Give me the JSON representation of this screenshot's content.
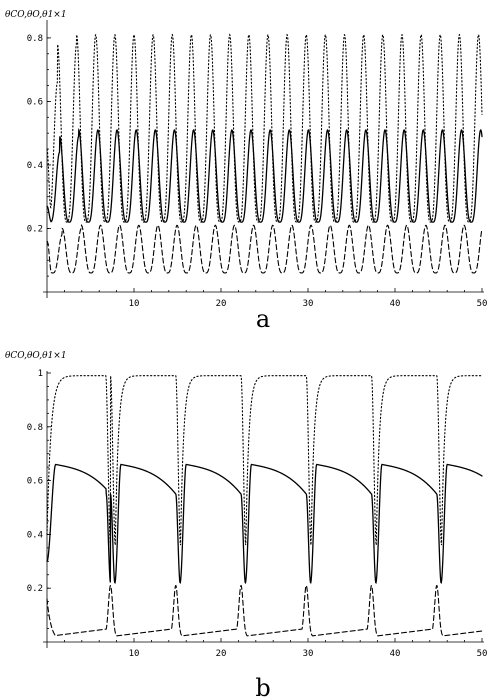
{
  "chart_data": [
    {
      "type": "line",
      "panel_label": "a",
      "ylabel": "θCO,θO,θ1×1",
      "xlim": [
        0,
        50
      ],
      "ylim": [
        0.0,
        0.85
      ],
      "xticks": [
        10,
        20,
        30,
        40,
        50
      ],
      "xtick_labels": [
        "10",
        "20",
        "30",
        "40",
        "50"
      ],
      "yticks": [
        0.2,
        0.4,
        0.6,
        0.8
      ],
      "ytick_labels": [
        "0.2",
        "0.4",
        "0.6",
        "0.8"
      ],
      "grid": false,
      "series": [
        {
          "style": "dotted",
          "kind": "periodic",
          "period": 2.2,
          "y0": 0.45,
          "early": [
            0.66,
            0.78
          ],
          "peak": 0.81,
          "trough": 0.22,
          "phase": 1.2
        },
        {
          "style": "solid",
          "kind": "periodic",
          "period": 2.2,
          "y0": 0.27,
          "early": [
            0.44,
            0.49
          ],
          "peak": 0.51,
          "trough": 0.22,
          "phase": 1.45
        },
        {
          "style": "dashed",
          "kind": "periodic",
          "period": 2.2,
          "y0": 0.16,
          "early": [
            0.18,
            0.2
          ],
          "peak": 0.21,
          "trough": 0.06,
          "phase": 1.75
        }
      ]
    },
    {
      "type": "line",
      "panel_label": "b",
      "ylabel": "θCO,θO,θ1×1",
      "xlim": [
        0,
        50
      ],
      "ylim": [
        0.0,
        1.0
      ],
      "xticks": [
        10,
        20,
        30,
        40,
        50
      ],
      "xtick_labels": [
        "10",
        "20",
        "30",
        "40",
        "50"
      ],
      "yticks": [
        0.2,
        0.4,
        0.6,
        0.8,
        1.0
      ],
      "ytick_labels": [
        "0.2",
        "0.4",
        "0.6",
        "0.8",
        "1"
      ],
      "grid": false,
      "series": [
        {
          "style": "dotted",
          "kind": "relax",
          "period": 7.5,
          "first_event": 7.3,
          "y0": 0.4,
          "high": 0.99,
          "low": 0.36
        },
        {
          "style": "solid",
          "kind": "relax",
          "period": 7.5,
          "first_event": 7.3,
          "y0": 0.3,
          "high": 0.66,
          "plateau_end": 0.55,
          "low": 0.22
        },
        {
          "style": "dashed",
          "kind": "relax",
          "period": 7.5,
          "first_event": 7.3,
          "y0": 0.16,
          "base": 0.02,
          "base_end": 0.05,
          "peak": 0.21
        }
      ]
    }
  ]
}
